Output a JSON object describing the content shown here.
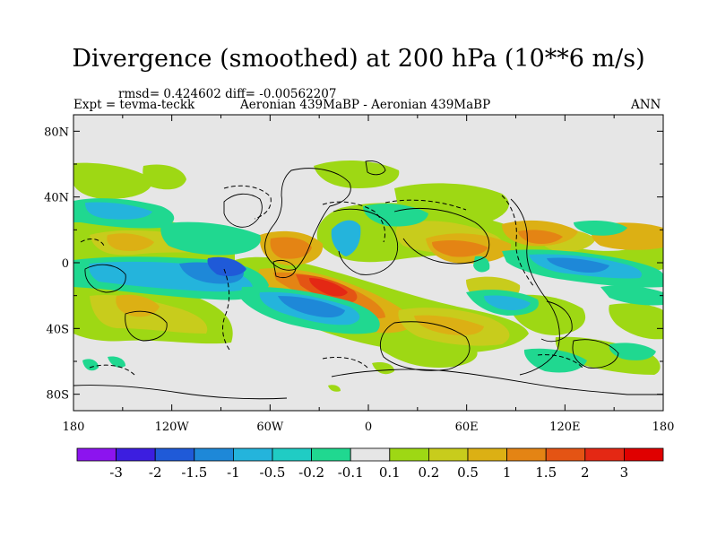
{
  "title": "Divergence (smoothed) at 200 hPa (10**6 m/s)",
  "stats_line": "rmsd= 0.424602 diff= -0.00562207",
  "experiment": "Expt = tevma-teckk",
  "comparison": "Aeronian 439MaBP - Aeronian 439MaBP",
  "period": "ANN",
  "axes": {
    "lat_labels": [
      "80N",
      "40N",
      "0",
      "40S",
      "80S"
    ],
    "lat_values": [
      80,
      40,
      0,
      -40,
      -80
    ],
    "lon_labels": [
      "180",
      "120W",
      "60W",
      "0",
      "60E",
      "120E",
      "180"
    ],
    "lon_values": [
      -180,
      -120,
      -60,
      0,
      60,
      120,
      180
    ],
    "lon_range": [
      -180,
      180
    ],
    "lat_range": [
      -90,
      90
    ]
  },
  "colorbar": {
    "labels": [
      "-3",
      "-2",
      "-1.5",
      "-1",
      "-0.5",
      "-0.2",
      "-0.1",
      "0.1",
      "0.2",
      "0.5",
      "1",
      "1.5",
      "2",
      "3"
    ],
    "colors": [
      "#8c14ef",
      "#3c1ee0",
      "#1f5ad8",
      "#1e88d8",
      "#24b4dc",
      "#20ccc4",
      "#20d890",
      "#e6e6e6",
      "#9ed814",
      "#c8cc1c",
      "#dcb014",
      "#e48414",
      "#e45414",
      "#e42814",
      "#e00000"
    ]
  },
  "colors": {
    "background": "#e6e6e6",
    "coastline": "#000000"
  }
}
